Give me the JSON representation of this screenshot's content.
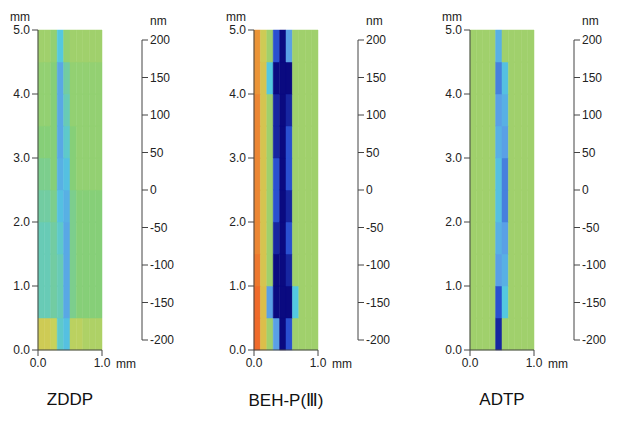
{
  "chart_data": [
    {
      "type": "heatmap",
      "title": "ZDDP",
      "x_label": "mm",
      "y_label": "mm",
      "xlim": [
        0,
        1
      ],
      "ylim": [
        0,
        5
      ],
      "xticks": [
        {
          "value": 0,
          "label": "0.0"
        },
        {
          "value": 1,
          "label": "1.0"
        }
      ],
      "yticks": [
        {
          "value": 0,
          "label": "0.0"
        },
        {
          "value": 1,
          "label": "1.0"
        },
        {
          "value": 2,
          "label": "2.0"
        },
        {
          "value": 3,
          "label": "3.0"
        },
        {
          "value": 4,
          "label": "4.0"
        },
        {
          "value": 5,
          "label": "5.0"
        }
      ],
      "x_edges": [
        0,
        0.1,
        0.2,
        0.3,
        0.4,
        0.5,
        0.6,
        0.7,
        0.8,
        0.9,
        1
      ],
      "y_edges": [
        0,
        0.5,
        1,
        1.5,
        2,
        2.5,
        3,
        3.5,
        4,
        4.5,
        5
      ],
      "cells": [
        [
          60,
          60,
          50,
          -40,
          -60,
          40,
          40,
          30,
          30,
          30
        ],
        [
          -30,
          -30,
          -20,
          -30,
          -90,
          -10,
          0,
          0,
          0,
          0
        ],
        [
          -30,
          -30,
          -20,
          -30,
          -90,
          -10,
          0,
          0,
          0,
          0
        ],
        [
          -30,
          -30,
          -20,
          -40,
          -90,
          -10,
          0,
          0,
          0,
          0
        ],
        [
          -20,
          -20,
          -10,
          -60,
          -80,
          -10,
          0,
          0,
          0,
          0
        ],
        [
          -10,
          -10,
          0,
          -80,
          -60,
          0,
          10,
          10,
          10,
          10
        ],
        [
          0,
          0,
          0,
          -90,
          -40,
          0,
          10,
          10,
          10,
          10
        ],
        [
          10,
          10,
          0,
          -90,
          -30,
          10,
          10,
          10,
          10,
          10
        ],
        [
          10,
          10,
          0,
          -90,
          -20,
          10,
          10,
          10,
          10,
          10
        ],
        [
          20,
          20,
          10,
          -50,
          10,
          20,
          20,
          20,
          20,
          20
        ]
      ],
      "colorbar": {
        "label": "nm",
        "range": [
          -200,
          200
        ],
        "ticks": [
          200,
          150,
          100,
          50,
          0,
          -50,
          -100,
          -150,
          -200
        ]
      }
    },
    {
      "type": "heatmap",
      "title": "BEH-P(Ⅲ)",
      "x_label": "mm",
      "y_label": "mm",
      "xlim": [
        0,
        1
      ],
      "ylim": [
        0,
        5
      ],
      "xticks": [
        {
          "value": 0,
          "label": "0.0"
        },
        {
          "value": 1,
          "label": "1.0"
        }
      ],
      "yticks": [
        {
          "value": 0,
          "label": "0.0"
        },
        {
          "value": 1,
          "label": "1.0"
        },
        {
          "value": 2,
          "label": "2.0"
        },
        {
          "value": 3,
          "label": "3.0"
        },
        {
          "value": 4,
          "label": "4.0"
        },
        {
          "value": 5,
          "label": "5.0"
        }
      ],
      "x_edges": [
        0,
        0.1,
        0.2,
        0.3,
        0.4,
        0.5,
        0.6,
        0.7,
        0.8,
        0.9,
        1
      ],
      "y_edges": [
        0,
        0.5,
        1,
        1.5,
        2,
        2.5,
        3,
        3.5,
        4,
        4.5,
        5
      ],
      "cells": [
        [
          150,
          80,
          20,
          -100,
          -200,
          -150,
          20,
          20,
          20,
          20
        ],
        [
          150,
          80,
          -100,
          -200,
          -200,
          -200,
          -50,
          20,
          20,
          20
        ],
        [
          140,
          70,
          20,
          -200,
          -200,
          -180,
          20,
          20,
          20,
          20
        ],
        [
          130,
          70,
          20,
          -180,
          -200,
          -150,
          20,
          20,
          20,
          20
        ],
        [
          130,
          70,
          20,
          -150,
          -200,
          -180,
          20,
          20,
          20,
          20
        ],
        [
          130,
          70,
          20,
          -150,
          -200,
          -150,
          20,
          20,
          20,
          20
        ],
        [
          130,
          70,
          20,
          -180,
          -200,
          -150,
          20,
          20,
          20,
          20
        ],
        [
          130,
          70,
          20,
          -180,
          -200,
          -180,
          20,
          20,
          20,
          20
        ],
        [
          120,
          70,
          -50,
          -200,
          -200,
          -200,
          20,
          20,
          20,
          20
        ],
        [
          120,
          60,
          20,
          -150,
          -200,
          -100,
          20,
          20,
          20,
          20
        ]
      ],
      "colorbar": {
        "label": "nm",
        "range": [
          -200,
          200
        ],
        "ticks": [
          200,
          150,
          100,
          50,
          0,
          -50,
          -100,
          -150,
          -200
        ]
      }
    },
    {
      "type": "heatmap",
      "title": "ADTP",
      "x_label": "mm",
      "y_label": "mm",
      "xlim": [
        0,
        1
      ],
      "ylim": [
        0,
        5
      ],
      "xticks": [
        {
          "value": 0,
          "label": "0.0"
        },
        {
          "value": 1,
          "label": "1.0"
        }
      ],
      "yticks": [
        {
          "value": 0,
          "label": "0.0"
        },
        {
          "value": 1,
          "label": "1.0"
        },
        {
          "value": 2,
          "label": "2.0"
        },
        {
          "value": 3,
          "label": "3.0"
        },
        {
          "value": 4,
          "label": "4.0"
        },
        {
          "value": 5,
          "label": "5.0"
        }
      ],
      "x_edges": [
        0,
        0.1,
        0.2,
        0.3,
        0.4,
        0.5,
        0.6,
        0.7,
        0.8,
        0.9,
        1
      ],
      "y_edges": [
        0,
        0.5,
        1,
        1.5,
        2,
        2.5,
        3,
        3.5,
        4,
        4.5,
        5
      ],
      "cells": [
        [
          20,
          20,
          20,
          20,
          -180,
          20,
          20,
          20,
          20,
          20
        ],
        [
          20,
          20,
          20,
          20,
          -150,
          -50,
          20,
          20,
          20,
          20
        ],
        [
          20,
          20,
          20,
          20,
          -100,
          -80,
          20,
          20,
          20,
          20
        ],
        [
          20,
          20,
          20,
          20,
          -80,
          -100,
          20,
          20,
          20,
          20
        ],
        [
          20,
          20,
          20,
          20,
          -60,
          -120,
          20,
          20,
          20,
          20
        ],
        [
          20,
          20,
          20,
          20,
          -60,
          -120,
          20,
          20,
          20,
          20
        ],
        [
          20,
          20,
          20,
          20,
          -80,
          -100,
          20,
          20,
          20,
          20
        ],
        [
          20,
          20,
          20,
          20,
          -100,
          -80,
          20,
          20,
          20,
          20
        ],
        [
          20,
          20,
          20,
          20,
          -120,
          -60,
          20,
          20,
          20,
          20
        ],
        [
          20,
          20,
          20,
          20,
          -80,
          20,
          20,
          20,
          20,
          20
        ]
      ],
      "colorbar": {
        "label": "nm",
        "range": [
          -200,
          200
        ],
        "ticks": [
          200,
          150,
          100,
          50,
          0,
          -50,
          -100,
          -150,
          -200
        ]
      }
    }
  ]
}
